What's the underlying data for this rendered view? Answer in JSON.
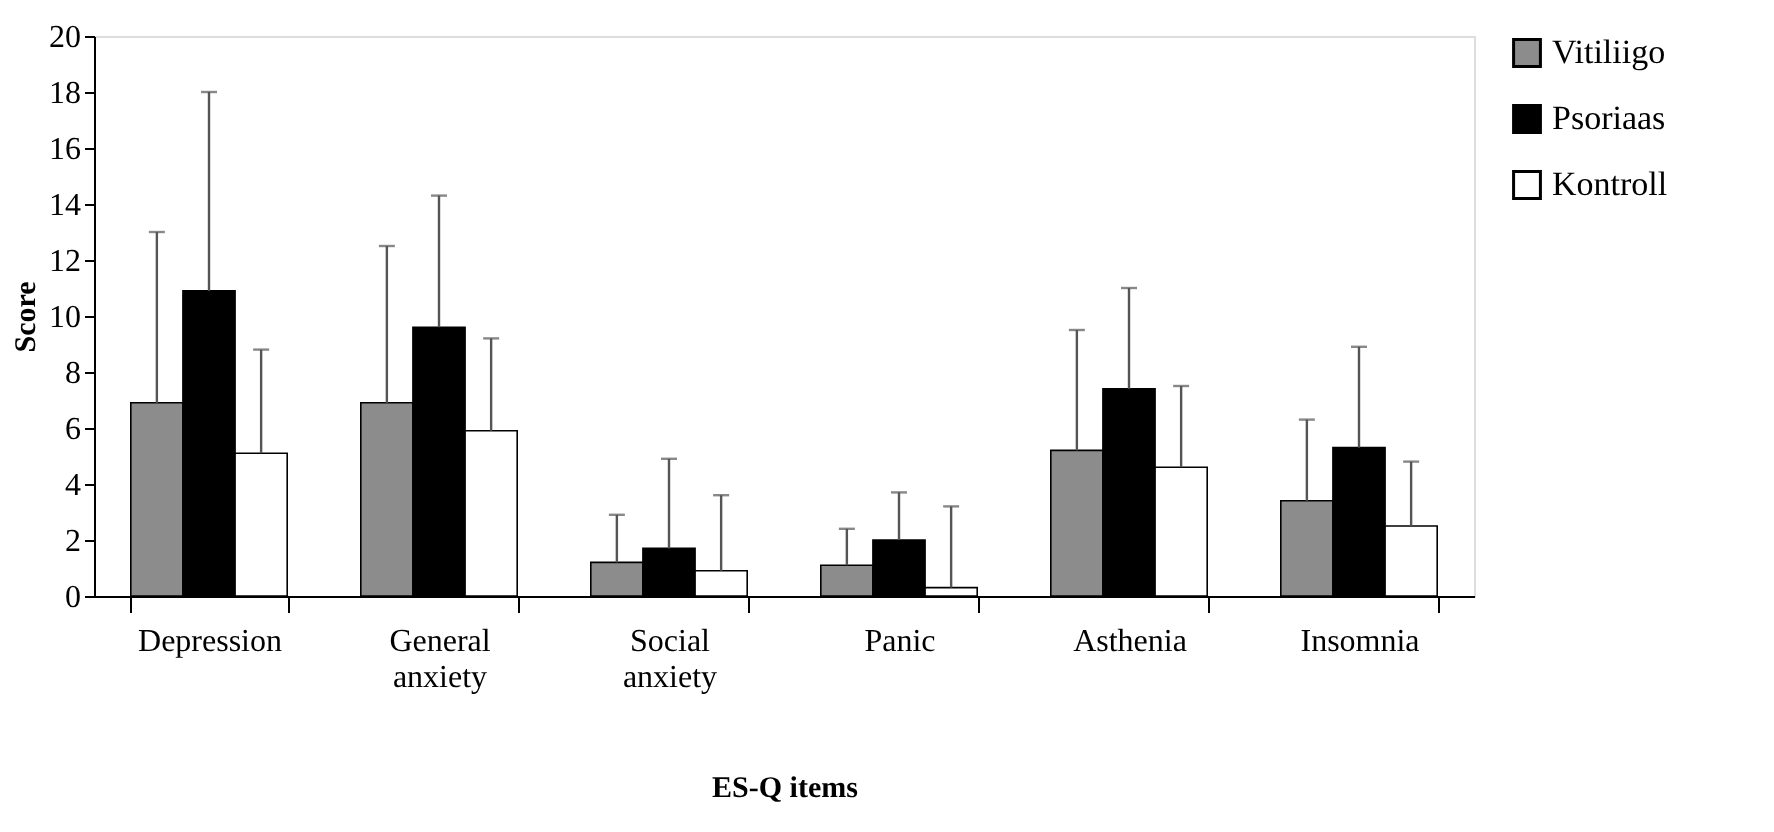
{
  "chart_data": {
    "type": "bar",
    "xlabel": "ES-Q items",
    "ylabel": "Score",
    "categories": [
      "Depression",
      "General anxiety",
      "Social anxiety",
      "Panic",
      "Asthenia",
      "Insomnia"
    ],
    "series": [
      {
        "name": "Vitiliigo",
        "color": "#8c8c8c",
        "values": [
          6.9,
          6.9,
          1.2,
          1.1,
          5.2,
          3.4
        ],
        "errors": [
          [
            6.9,
            13.0
          ],
          [
            6.9,
            12.5
          ],
          [
            1.2,
            2.9
          ],
          [
            1.1,
            2.4
          ],
          [
            5.2,
            9.5
          ],
          [
            3.4,
            6.3
          ]
        ]
      },
      {
        "name": "Psoriaas",
        "color": "#000000",
        "values": [
          10.9,
          9.6,
          1.7,
          2.0,
          7.4,
          5.3
        ],
        "errors": [
          [
            10.9,
            18.0
          ],
          [
            9.6,
            14.3
          ],
          [
            1.7,
            4.9
          ],
          [
            2.0,
            3.7
          ],
          [
            7.4,
            11.0
          ],
          [
            5.3,
            8.9
          ]
        ]
      },
      {
        "name": "Kontroll",
        "color": "#ffffff",
        "values": [
          5.1,
          5.9,
          0.9,
          0.3,
          4.6,
          2.5
        ],
        "errors": [
          [
            5.1,
            8.8
          ],
          [
            5.9,
            9.2
          ],
          [
            0.9,
            3.6
          ],
          [
            0.3,
            3.2
          ],
          [
            4.6,
            7.5
          ],
          [
            2.5,
            4.8
          ]
        ]
      }
    ],
    "ylim": [
      0,
      20
    ],
    "yticks": [
      0,
      2,
      4,
      6,
      8,
      10,
      12,
      14,
      16,
      18,
      20
    ],
    "grid": false,
    "legend": "right"
  }
}
